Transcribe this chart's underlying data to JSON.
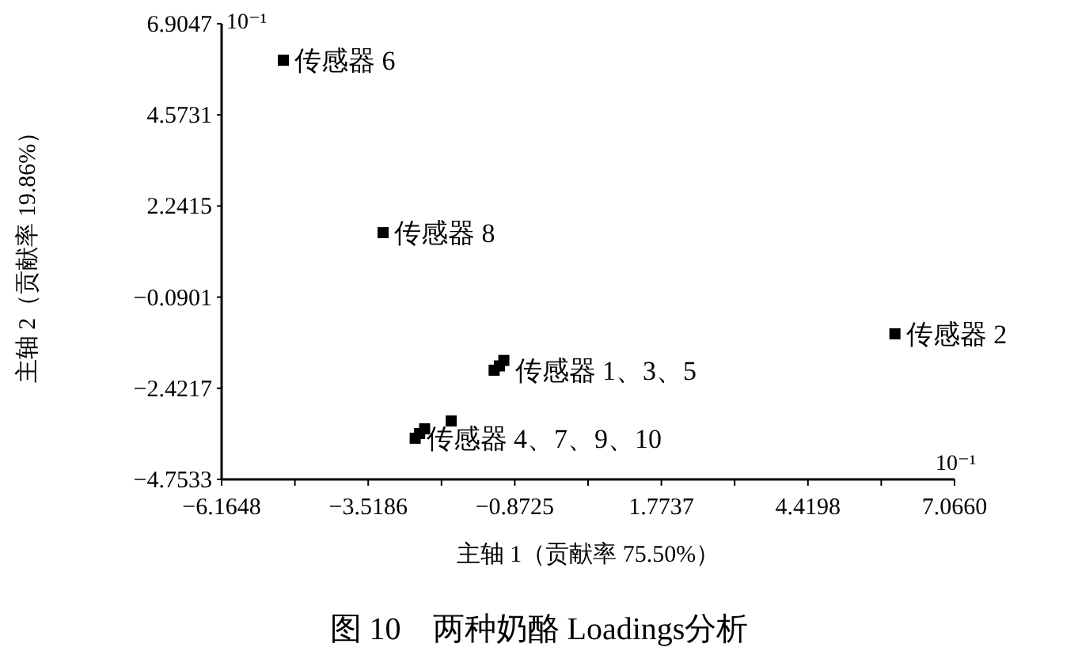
{
  "chart_data": {
    "type": "scatter",
    "title": "图 10　两种奶酪 Loadings分析",
    "xlabel": "主轴 1（贡献率 75.50%）",
    "ylabel": "主轴 2（贡献率 19.86%）",
    "xlim": [
      -6.1648,
      7.066
    ],
    "ylim": [
      -4.7533,
      6.9047
    ],
    "xticks": [
      -6.1648,
      {
        "value": -4.8417,
        "label": null
      },
      -3.5186,
      {
        "value": -2.1955,
        "label": null
      },
      -0.8725,
      {
        "value": 0.4506,
        "label": null
      },
      1.7737,
      {
        "value": 3.0968,
        "label": null
      },
      4.4198,
      {
        "value": 5.7429,
        "label": null
      },
      {
        "value": 7.066,
        "label": "7.0660"
      }
    ],
    "yticks": [
      6.9047,
      4.5731,
      2.2415,
      -0.0901,
      -2.4217,
      -4.7533
    ],
    "grid": false,
    "marker": "square",
    "series": [
      {
        "color": "#000000",
        "x": [
          -5.05,
          -3.25,
          -1.245,
          -1.15,
          -1.07,
          5.99,
          -2.67,
          -2.59,
          -2.5,
          -2.02
        ],
        "values": [
          5.97,
          1.56,
          -1.96,
          -1.85,
          -1.71,
          -1.03,
          -3.7,
          -3.58,
          -3.46,
          -3.26
        ]
      }
    ],
    "annotations": [
      {
        "text": "传感器 6",
        "x": -5.05,
        "y": 5.97
      },
      {
        "text": "传感器 8",
        "x": -3.25,
        "y": 1.56
      },
      {
        "text": "传感器 1、3、5",
        "x": -1.07,
        "y": -1.96
      },
      {
        "text": "传感器 2",
        "x": 5.99,
        "y": -1.03
      },
      {
        "text": "传感器 4、7、9、10",
        "x": -2.67,
        "y": -3.7
      },
      "10⁻¹",
      "10⁻¹"
    ]
  }
}
